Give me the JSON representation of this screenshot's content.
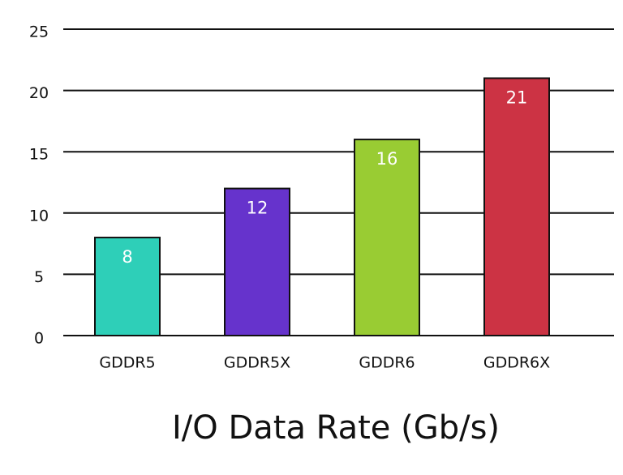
{
  "chart_data": {
    "type": "bar",
    "title": "I/O Data Rate (Gb/s)",
    "categories": [
      "GDDR5",
      "GDDR5X",
      "GDDR6",
      "GDDR6X"
    ],
    "values": [
      8,
      12,
      16,
      21
    ],
    "colors": [
      "#2ecfb8",
      "#6633cc",
      "#99cc33",
      "#cc3344"
    ],
    "ylim": [
      0,
      25
    ],
    "yticks": [
      0,
      5,
      10,
      15,
      20,
      25
    ],
    "grid": true
  }
}
